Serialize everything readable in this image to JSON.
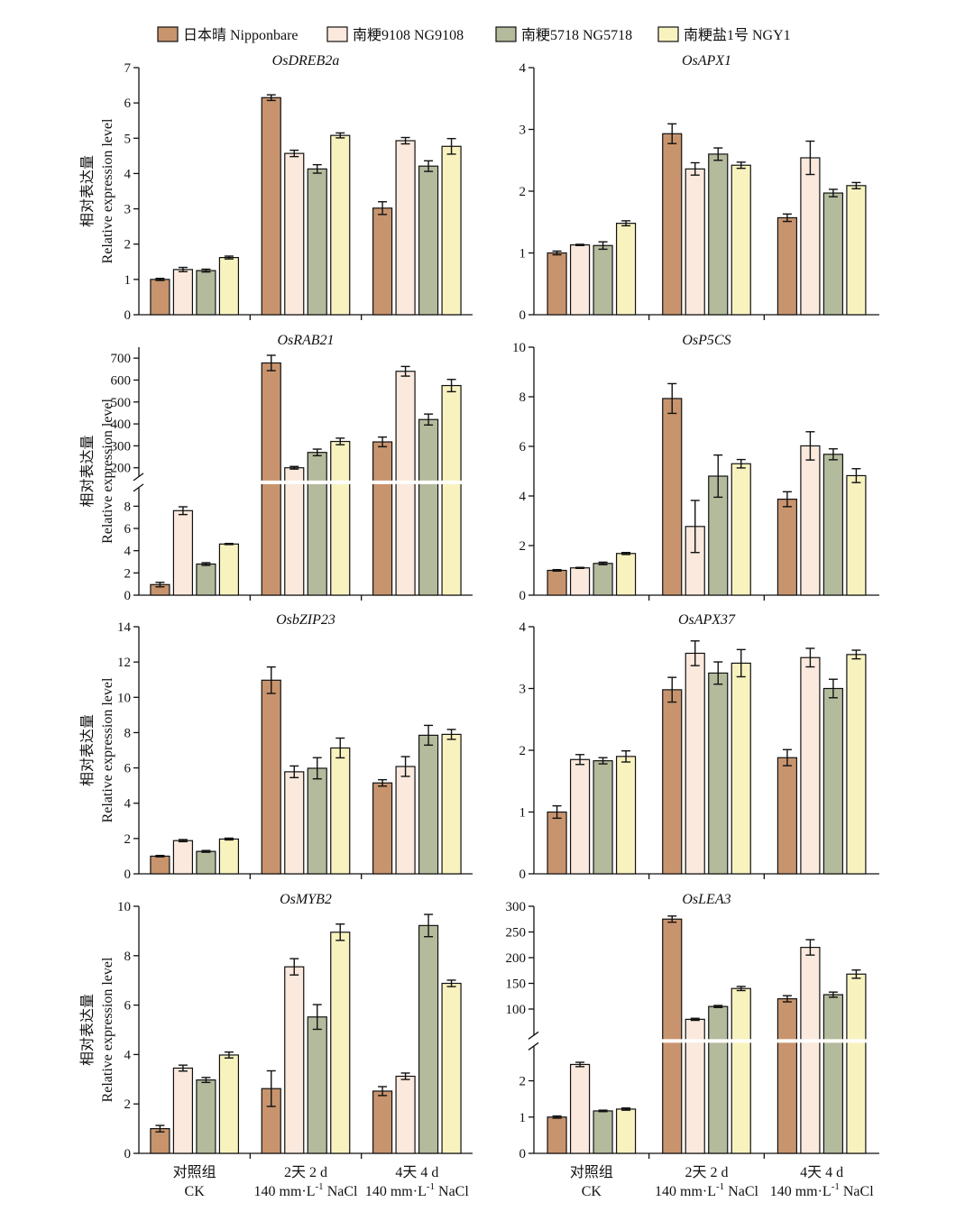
{
  "legend": {
    "items": [
      {
        "label": "日本晴 Nipponbare",
        "color": "#c8946e"
      },
      {
        "label": "南粳9108 NG9108",
        "color": "#fbe9dd"
      },
      {
        "label": "南粳5718 NG5718",
        "color": "#b4bb9d"
      },
      {
        "label": "南粳盐1号 NGY1",
        "color": "#f8f2bf"
      }
    ]
  },
  "y_label": {
    "cn": "相对表达量",
    "en": "Relative expression level"
  },
  "x_groups": [
    {
      "line1": "对照组",
      "line2": "CK",
      "sup_pre": "",
      "sup": "",
      "sup_post": ""
    },
    {
      "line1": "2天 2 d",
      "line2": "",
      "sup_pre": "140 mm·L",
      "sup": "-1",
      "sup_post": " NaCl"
    },
    {
      "line1": "4天 4 d",
      "line2": "",
      "sup_pre": "140 mm·L",
      "sup": "-1",
      "sup_post": " NaCl"
    }
  ],
  "chart_data": [
    {
      "type": "bar",
      "title": "OsDREB2a",
      "categories": [
        "对照组 CK",
        "2天 2 d",
        "4天 4 d"
      ],
      "ylim": [
        0,
        7
      ],
      "ticks": [
        0,
        1,
        2,
        3,
        4,
        5,
        6,
        7
      ],
      "series": [
        {
          "name": "日本晴 Nipponbare",
          "values": [
            1.0,
            6.15,
            3.02
          ],
          "errors": [
            0.03,
            0.08,
            0.18
          ]
        },
        {
          "name": "南粳9108 NG9108",
          "values": [
            1.28,
            4.57,
            4.93
          ],
          "errors": [
            0.06,
            0.09,
            0.09
          ]
        },
        {
          "name": "南粳5718 NG5718",
          "values": [
            1.25,
            4.13,
            4.21
          ],
          "errors": [
            0.04,
            0.12,
            0.15
          ]
        },
        {
          "name": "南粳盐1号 NGY1",
          "values": [
            1.62,
            5.08,
            4.77
          ],
          "errors": [
            0.04,
            0.07,
            0.22
          ]
        }
      ]
    },
    {
      "type": "bar",
      "title": "OsAPX1",
      "categories": [
        "对照组 CK",
        "2天 2 d",
        "4天 4 d"
      ],
      "ylim": [
        0,
        4
      ],
      "ticks": [
        0,
        1,
        2,
        3,
        4
      ],
      "series": [
        {
          "name": "日本晴 Nipponbare",
          "values": [
            1.0,
            2.93,
            1.57
          ],
          "errors": [
            0.03,
            0.16,
            0.06
          ]
        },
        {
          "name": "南粳9108 NG9108",
          "values": [
            1.13,
            2.36,
            2.54
          ],
          "errors": [
            0.01,
            0.1,
            0.27
          ]
        },
        {
          "name": "南粳5718 NG5718",
          "values": [
            1.12,
            2.6,
            1.97
          ],
          "errors": [
            0.06,
            0.1,
            0.06
          ]
        },
        {
          "name": "南粳盐1号 NGY1",
          "values": [
            1.48,
            2.42,
            2.09
          ],
          "errors": [
            0.04,
            0.05,
            0.05
          ]
        }
      ]
    },
    {
      "type": "bar",
      "title": "OsRAB21",
      "categories": [
        "对照组 CK",
        "2天 2 d",
        "4天 4 d"
      ],
      "broken_axis": true,
      "ticks_lower": [
        0,
        2,
        4,
        6,
        8
      ],
      "ticks_upper": [
        200,
        300,
        400,
        500,
        600,
        700
      ],
      "lower_range": [
        0,
        9.5
      ],
      "upper_range": [
        150,
        750
      ],
      "series": [
        {
          "name": "日本晴 Nipponbare",
          "values": [
            0.95,
            678,
            318
          ],
          "errors": [
            0.2,
            35,
            22
          ]
        },
        {
          "name": "南粳9108 NG9108",
          "values": [
            7.6,
            200,
            640
          ],
          "errors": [
            0.35,
            6,
            22
          ]
        },
        {
          "name": "南粳5718 NG5718",
          "values": [
            2.8,
            270,
            420
          ],
          "errors": [
            0.12,
            15,
            25
          ]
        },
        {
          "name": "南粳盐1号 NGY1",
          "values": [
            4.6,
            320,
            575
          ],
          "errors": [
            0.05,
            15,
            28
          ]
        }
      ]
    },
    {
      "type": "bar",
      "title": "OsP5CS",
      "categories": [
        "对照组 CK",
        "2天 2 d",
        "4天 4 d"
      ],
      "ylim": [
        0,
        10
      ],
      "ticks": [
        0,
        2,
        4,
        6,
        8,
        10
      ],
      "series": [
        {
          "name": "日本晴 Nipponbare",
          "values": [
            1.0,
            7.93,
            3.87
          ],
          "errors": [
            0.03,
            0.6,
            0.3
          ]
        },
        {
          "name": "南粳9108 NG9108",
          "values": [
            1.1,
            2.77,
            6.02
          ],
          "errors": [
            0.02,
            1.05,
            0.57
          ]
        },
        {
          "name": "南粳5718 NG5718",
          "values": [
            1.28,
            4.8,
            5.68
          ],
          "errors": [
            0.05,
            0.85,
            0.22
          ]
        },
        {
          "name": "南粳盐1号 NGY1",
          "values": [
            1.68,
            5.3,
            4.82
          ],
          "errors": [
            0.04,
            0.17,
            0.28
          ]
        }
      ]
    },
    {
      "type": "bar",
      "title": "OsbZIP23",
      "categories": [
        "对照组 CK",
        "2天 2 d",
        "4天 4 d"
      ],
      "ylim": [
        0,
        14
      ],
      "ticks": [
        0,
        2,
        4,
        6,
        8,
        10,
        12,
        14
      ],
      "series": [
        {
          "name": "日本晴 Nipponbare",
          "values": [
            1.0,
            10.97,
            5.15
          ],
          "errors": [
            0.04,
            0.75,
            0.18
          ]
        },
        {
          "name": "南粳9108 NG9108",
          "values": [
            1.88,
            5.78,
            6.08
          ],
          "errors": [
            0.06,
            0.33,
            0.56
          ]
        },
        {
          "name": "南粳5718 NG5718",
          "values": [
            1.27,
            5.98,
            7.85
          ],
          "errors": [
            0.05,
            0.6,
            0.56
          ]
        },
        {
          "name": "南粳盐1号 NGY1",
          "values": [
            1.97,
            7.13,
            7.9
          ],
          "errors": [
            0.05,
            0.56,
            0.28
          ]
        }
      ]
    },
    {
      "type": "bar",
      "title": "OsAPX37",
      "categories": [
        "对照组 CK",
        "2天 2 d",
        "4天 4 d"
      ],
      "ylim": [
        0,
        4
      ],
      "ticks": [
        0,
        1,
        2,
        3,
        4
      ],
      "series": [
        {
          "name": "日本晴 Nipponbare",
          "values": [
            1.0,
            2.98,
            1.88
          ],
          "errors": [
            0.1,
            0.2,
            0.13
          ]
        },
        {
          "name": "南粳9108 NG9108",
          "values": [
            1.85,
            3.57,
            3.5
          ],
          "errors": [
            0.08,
            0.2,
            0.15
          ]
        },
        {
          "name": "南粳5718 NG5718",
          "values": [
            1.83,
            3.25,
            3.0
          ],
          "errors": [
            0.05,
            0.18,
            0.15
          ]
        },
        {
          "name": "南粳盐1号 NGY1",
          "values": [
            1.9,
            3.41,
            3.55
          ],
          "errors": [
            0.09,
            0.22,
            0.07
          ]
        }
      ]
    },
    {
      "type": "bar",
      "title": "OsMYB2",
      "categories": [
        "对照组 CK",
        "2天 2 d",
        "4天 4 d"
      ],
      "ylim": [
        0,
        10
      ],
      "ticks": [
        0,
        2,
        4,
        6,
        8,
        10
      ],
      "series": [
        {
          "name": "日本晴 Nipponbare",
          "values": [
            1.0,
            2.62,
            2.52
          ],
          "errors": [
            0.13,
            0.72,
            0.18
          ]
        },
        {
          "name": "南粳9108 NG9108",
          "values": [
            3.45,
            7.55,
            3.12
          ],
          "errors": [
            0.12,
            0.33,
            0.13
          ]
        },
        {
          "name": "南粳5718 NG5718",
          "values": [
            2.97,
            5.52,
            9.22
          ],
          "errors": [
            0.1,
            0.5,
            0.45
          ]
        },
        {
          "name": "南粳盐1号 NGY1",
          "values": [
            3.98,
            8.95,
            6.88
          ],
          "errors": [
            0.12,
            0.33,
            0.13
          ]
        }
      ]
    },
    {
      "type": "bar",
      "title": "OsLEA3",
      "categories": [
        "对照组 CK",
        "2天 2 d",
        "4天 4 d"
      ],
      "broken_axis": true,
      "ticks_lower": [
        0,
        1,
        2
      ],
      "ticks_upper": [
        100,
        150,
        200,
        250,
        300
      ],
      "lower_range": [
        0,
        2.9
      ],
      "upper_range": [
        45,
        300
      ],
      "series": [
        {
          "name": "日本晴 Nipponbare",
          "values": [
            1.0,
            275,
            120
          ],
          "errors": [
            0.03,
            6,
            6
          ]
        },
        {
          "name": "南粳9108 NG9108",
          "values": [
            2.45,
            80,
            220
          ],
          "errors": [
            0.06,
            2,
            15
          ]
        },
        {
          "name": "南粳5718 NG5718",
          "values": [
            1.17,
            105,
            128
          ],
          "errors": [
            0.02,
            2,
            5
          ]
        },
        {
          "name": "南粳盐1号 NGY1",
          "values": [
            1.22,
            140,
            168
          ],
          "errors": [
            0.03,
            4,
            8
          ]
        }
      ]
    }
  ]
}
